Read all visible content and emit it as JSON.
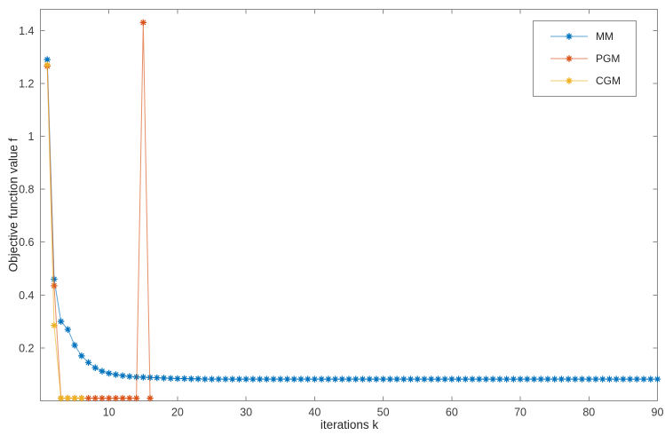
{
  "chart_data": {
    "type": "line",
    "title": "",
    "xlabel": "iterations k",
    "ylabel": "Objective function value f",
    "xlim": [
      0,
      90
    ],
    "ylim": [
      0,
      1.48
    ],
    "x_tick_values": [
      10,
      20,
      30,
      40,
      50,
      60,
      70,
      80,
      90
    ],
    "x_tick_labels": [
      "10",
      "20",
      "30",
      "40",
      "50",
      "60",
      "70",
      "80",
      "90"
    ],
    "y_tick_values": [
      0.2,
      0.4,
      0.6,
      0.8,
      1.0,
      1.2,
      1.4
    ],
    "y_tick_labels": [
      "0.2",
      "0.4",
      "0.6",
      "0.8",
      "1",
      "1.2",
      "1.4"
    ],
    "grid": false,
    "legend_position": "top-right",
    "marker": "asterisk",
    "axis_color": "#8a8a8a",
    "tick_label_color": "#3c3c3c",
    "series": [
      {
        "name": "MM",
        "color": "#0072BD",
        "x_start": 1,
        "values": [
          1.29,
          0.46,
          0.3,
          0.27,
          0.21,
          0.17,
          0.145,
          0.125,
          0.112,
          0.104,
          0.099,
          0.095,
          0.092,
          0.09,
          0.089,
          0.088,
          0.087,
          0.086,
          0.085,
          0.084,
          0.084,
          0.083,
          0.083,
          0.082,
          0.082,
          0.082,
          0.082,
          0.082,
          0.082,
          0.082,
          0.082,
          0.082,
          0.082,
          0.082,
          0.082,
          0.082,
          0.082,
          0.082,
          0.082,
          0.082,
          0.082,
          0.082,
          0.082,
          0.082,
          0.082,
          0.082,
          0.082,
          0.082,
          0.082,
          0.082,
          0.082,
          0.082,
          0.082,
          0.082,
          0.082,
          0.082,
          0.082,
          0.082,
          0.082,
          0.082,
          0.082,
          0.082,
          0.082,
          0.082,
          0.082,
          0.082,
          0.082,
          0.082,
          0.082,
          0.082,
          0.082,
          0.082,
          0.082,
          0.082,
          0.082,
          0.082,
          0.082,
          0.082,
          0.082,
          0.082,
          0.082,
          0.082,
          0.082,
          0.082,
          0.082,
          0.082,
          0.082,
          0.082,
          0.082,
          0.082
        ]
      },
      {
        "name": "PGM",
        "color": "#D95319",
        "x_start": 1,
        "values": [
          1.265,
          0.435,
          0.01,
          0.01,
          0.01,
          0.01,
          0.01,
          0.01,
          0.01,
          0.01,
          0.01,
          0.01,
          0.01,
          0.01,
          1.43,
          0.01
        ]
      },
      {
        "name": "CGM",
        "color": "#EDB120",
        "x_start": 1,
        "values": [
          1.27,
          0.285,
          0.01,
          0.01,
          0.01,
          0.01
        ]
      }
    ]
  },
  "legend": {
    "items": [
      {
        "label": "MM"
      },
      {
        "label": "PGM"
      },
      {
        "label": "CGM"
      }
    ]
  }
}
